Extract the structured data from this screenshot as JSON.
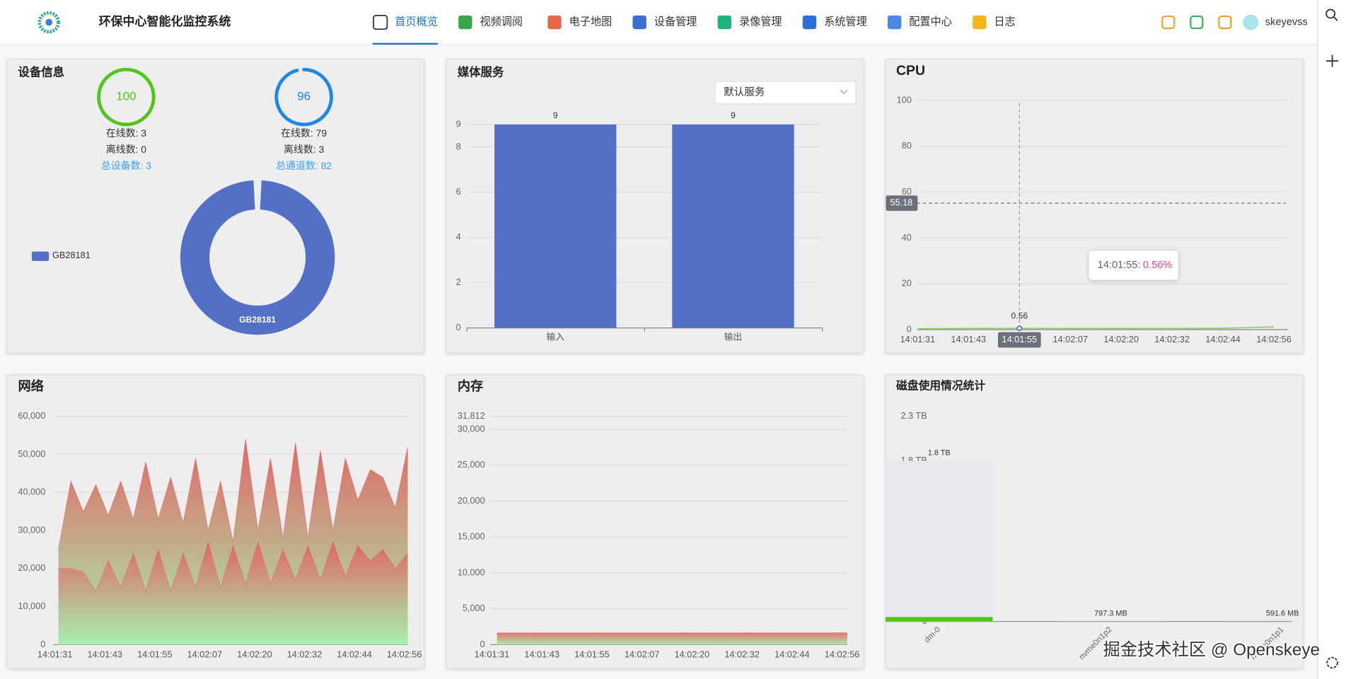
{
  "header": {
    "title": "环保中心智能化监控系统",
    "nav": [
      "首页概览",
      "视频调阅",
      "电子地图",
      "设备管理",
      "录像管理",
      "系统管理",
      "配置中心",
      "日志"
    ],
    "active": 0,
    "user": "skeyevss"
  },
  "device_info": {
    "title": "设备信息",
    "gauges": [
      {
        "value": 100,
        "max": 100,
        "color": "#52c41a",
        "lines": [
          "在线数: 3",
          "离线数: 0"
        ],
        "total": "总设备数: 3"
      },
      {
        "value": 96,
        "max": 100,
        "color": "#1e88e5",
        "lines": [
          "在线数: 79",
          "离线数: 3"
        ],
        "total": "总通道数: 82"
      }
    ],
    "chart_data": {
      "type": "pie",
      "categories": [
        "GB28181"
      ],
      "values": [
        3
      ],
      "colors": [
        "#5470c6"
      ],
      "legend": "left"
    }
  },
  "media": {
    "title": "媒体服务",
    "select": "默认服务",
    "chart_data": {
      "type": "bar",
      "categories": [
        "输入",
        "输出"
      ],
      "values": [
        9,
        9
      ],
      "color": "#5470c6",
      "labels": true,
      "ylim": [
        0,
        9
      ],
      "yticks": [
        0,
        2,
        4,
        6,
        8,
        9
      ],
      "grid": true
    }
  },
  "cpu": {
    "chart_data": {
      "type": "line",
      "title": "CPU",
      "categories": [
        "14:01:31",
        "14:01:43",
        "14:01:55",
        "14:02:07",
        "14:02:20",
        "14:02:32",
        "14:02:44",
        "14:02:56"
      ],
      "series": [
        {
          "color": "#91cc75",
          "values": [
            0.4,
            0.5,
            0.56,
            0.5,
            0.5,
            0.5,
            0.6,
            1.2
          ]
        }
      ],
      "ylim": [
        0,
        100
      ],
      "yticks": [
        0,
        20,
        40,
        60,
        80,
        100
      ],
      "grid": true,
      "pointer": {
        "y": 55.18,
        "x_label": "14:01:55"
      },
      "tooltip": {
        "label": "14:01:55:",
        "value": "0.56%"
      }
    }
  },
  "network": {
    "chart_data": {
      "type": "area",
      "title": "网络",
      "categories": [
        "14:01:31",
        null,
        null,
        null,
        "14:01:43",
        null,
        null,
        null,
        "14:01:55",
        null,
        null,
        null,
        "14:02:07",
        null,
        null,
        null,
        "14:02:20",
        null,
        null,
        null,
        "14:02:32",
        null,
        null,
        null,
        "14:02:44",
        null,
        null,
        null,
        "14:02:56"
      ],
      "series": [
        {
          "color": "#e06666",
          "color_bottom": "#a6f0ae",
          "values": [
            25000,
            43000,
            35000,
            42000,
            34000,
            43000,
            33000,
            48000,
            33000,
            44000,
            32000,
            49000,
            30000,
            43000,
            27000,
            54000,
            30000,
            49000,
            28000,
            53000,
            28000,
            51000,
            30000,
            49000,
            38000,
            46000,
            44000,
            36000,
            52000
          ]
        },
        {
          "color": "#e06666",
          "color_bottom": "#a6f0ae",
          "values": [
            20000,
            20000,
            19000,
            14000,
            22000,
            15000,
            24000,
            14000,
            25000,
            14000,
            24000,
            15000,
            27000,
            15000,
            26000,
            16000,
            27000,
            16000,
            25000,
            17000,
            26000,
            17000,
            27000,
            18000,
            26000,
            22000,
            25000,
            20000,
            24000
          ]
        }
      ],
      "ylim": [
        0,
        60000
      ],
      "yticks": [
        0,
        {
          "value": 10000,
          "label": "10,000"
        },
        {
          "value": 20000,
          "label": "20,000"
        },
        {
          "value": 30000,
          "label": "30,000"
        },
        {
          "value": 40000,
          "label": "40,000"
        },
        {
          "value": 50000,
          "label": "50,000"
        },
        {
          "value": 60000,
          "label": "60,000"
        }
      ],
      "grid": true
    }
  },
  "memory": {
    "chart_data": {
      "type": "area",
      "title": "内存",
      "categories": [
        "14:01:31",
        null,
        null,
        null,
        "14:01:43",
        null,
        null,
        null,
        "14:01:55",
        null,
        null,
        null,
        "14:02:07",
        null,
        null,
        null,
        "14:02:20",
        null,
        null,
        null,
        "14:02:32",
        null,
        null,
        null,
        "14:02:44",
        null,
        null,
        null,
        "14:02:56"
      ],
      "series": [
        {
          "color": "#e57373",
          "color_bottom": "#a5e8a8",
          "values": [
            1650,
            1652,
            1650,
            1655,
            1650,
            1648,
            1650,
            1652,
            1655,
            1650,
            1650,
            1652,
            1650,
            1648,
            1650,
            1655,
            1650,
            1652,
            1650,
            1650,
            1655,
            1650,
            1652,
            1650,
            1648,
            1650,
            1652,
            1655,
            1660
          ]
        }
      ],
      "ylim": [
        0,
        31812
      ],
      "yticks": [
        0,
        {
          "value": 5000,
          "label": "5,000"
        },
        {
          "value": 10000,
          "label": "10,000"
        },
        {
          "value": 15000,
          "label": "15,000"
        },
        {
          "value": 20000,
          "label": "20,000"
        },
        {
          "value": 25000,
          "label": "25,000"
        },
        {
          "value": 30000,
          "label": "30,000"
        },
        {
          "value": 31812,
          "label": "31,812"
        }
      ],
      "grid": true
    }
  },
  "disk": {
    "chart_data": {
      "type": "bar",
      "title": "磁盘使用情况统计",
      "categories": [
        "dm-0",
        "nvme0n1p2",
        "nvme0n1p1"
      ],
      "series": [
        {
          "color": "#e6e8ec",
          "values": [
            1.8,
            0.0007973,
            0.0005916
          ],
          "value_labels": [
            "1.8 TB",
            "797.3 MB",
            "591.6 MB"
          ]
        },
        {
          "color": "#52c41a",
          "values": [
            0.05,
            0.0001,
            0.0001
          ]
        }
      ],
      "ylim": [
        0,
        2.3
      ],
      "yticks": [
        0,
        {
          "value": 1.8,
          "label": "1.8 TB"
        },
        {
          "value": 2.3,
          "label": "2.3 TB"
        }
      ],
      "xlabel_rotation": 45
    }
  },
  "watermark": "掘金技术社区 @ Openskeye"
}
